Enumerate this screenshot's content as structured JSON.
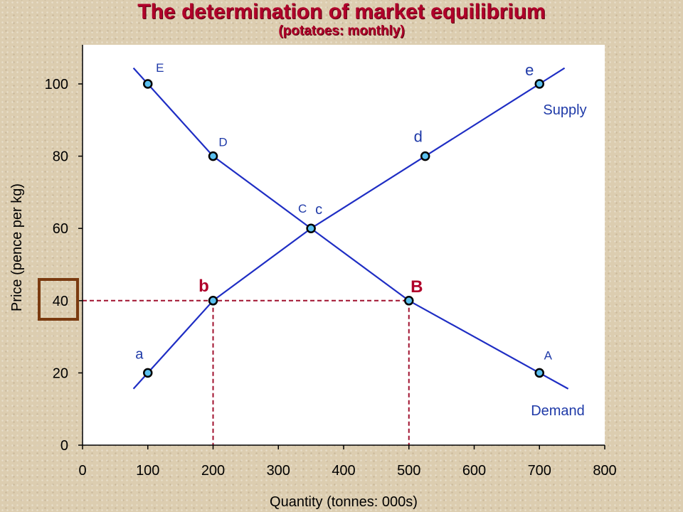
{
  "chart_data": {
    "type": "line",
    "title": "The determination of market equilibrium",
    "subtitle": "(potatoes: monthly)",
    "xlabel": "Quantity (tonnes: 000s)",
    "ylabel": "Price (pence per kg)",
    "xlim": [
      0,
      800
    ],
    "ylim": [
      0,
      100
    ],
    "x_ticks": [
      "0",
      "100",
      "200",
      "300",
      "400",
      "500",
      "600",
      "700",
      "800"
    ],
    "y_ticks": [
      "0",
      "20",
      "40",
      "60",
      "80",
      "100"
    ],
    "series": [
      {
        "name": "Supply",
        "color": "#1f2ec4",
        "points": [
          {
            "label": "a",
            "x": 100,
            "y": 20
          },
          {
            "label": "b",
            "x": 200,
            "y": 40
          },
          {
            "label": "c",
            "x": 350,
            "y": 60
          },
          {
            "label": "d",
            "x": 525,
            "y": 80
          },
          {
            "label": "e",
            "x": 700,
            "y": 100
          }
        ]
      },
      {
        "name": "Demand",
        "color": "#1f2ec4",
        "points": [
          {
            "label": "E",
            "x": 100,
            "y": 100
          },
          {
            "label": "D",
            "x": 200,
            "y": 80
          },
          {
            "label": "C",
            "x": 350,
            "y": 60
          },
          {
            "label": "B",
            "x": 500,
            "y": 40
          },
          {
            "label": "A",
            "x": 700,
            "y": 20
          }
        ]
      }
    ],
    "reference_price": 40,
    "highlighted_points": [
      "b",
      "B"
    ],
    "point_color": "#5bc0ef",
    "grid": false
  }
}
